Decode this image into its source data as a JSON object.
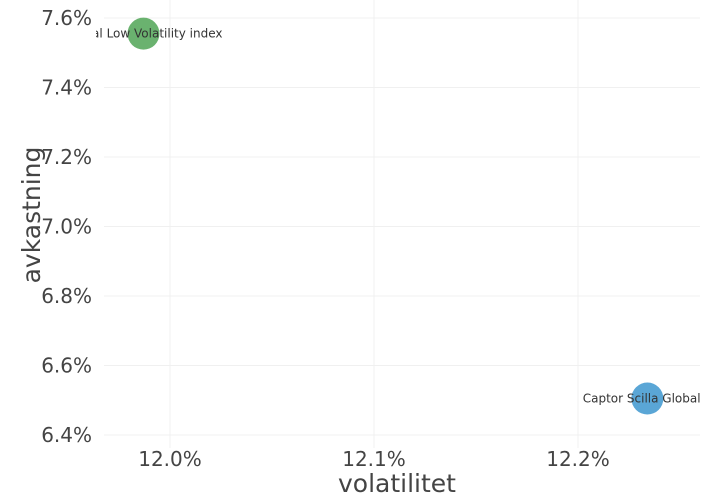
{
  "chart_data": {
    "type": "scatter",
    "title": "",
    "xlabel": "volatilitet",
    "ylabel": "avkastning",
    "xlim": [
      11.967,
      12.26
    ],
    "ylim": [
      6.38,
      7.6
    ],
    "x_ticks": [
      {
        "value": 12.0,
        "label": "12.0%"
      },
      {
        "value": 12.1,
        "label": "12.1%"
      },
      {
        "value": 12.2,
        "label": "12.2%"
      }
    ],
    "y_ticks": [
      {
        "value": 6.4,
        "label": "6.4%"
      },
      {
        "value": 6.6,
        "label": "6.6%"
      },
      {
        "value": 6.8,
        "label": "6.8%"
      },
      {
        "value": 7.0,
        "label": "7.0%"
      },
      {
        "value": 7.2,
        "label": "7.2%"
      },
      {
        "value": 7.4,
        "label": "7.4%"
      },
      {
        "value": 7.6,
        "label": "7.6%"
      }
    ],
    "grid": true,
    "points": [
      {
        "label": "Global Low Volatility index",
        "x": 11.987,
        "y": 7.555,
        "color": "#6ab26f"
      },
      {
        "label": "Captor Scilla Global E",
        "x": 12.234,
        "y": 6.505,
        "color": "#5aa6d6"
      }
    ]
  }
}
